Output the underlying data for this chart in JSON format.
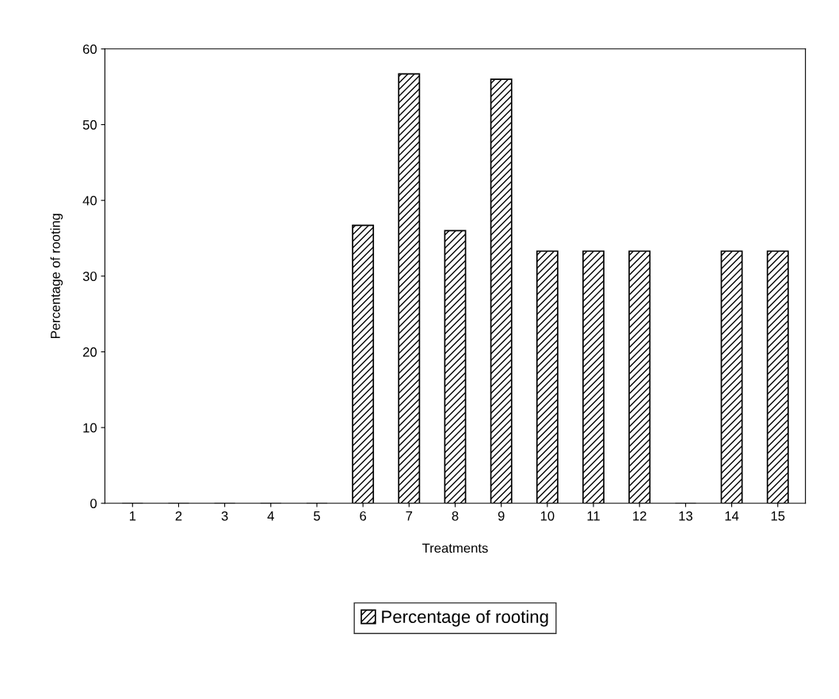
{
  "chart_data": {
    "type": "bar",
    "xlabel": "Treatments",
    "ylabel": "Percentage of rooting",
    "categories": [
      "1",
      "2",
      "3",
      "4",
      "5",
      "6",
      "7",
      "8",
      "9",
      "10",
      "11",
      "12",
      "13",
      "14",
      "15"
    ],
    "series": [
      {
        "name": "Percentage of rooting",
        "color": "#000000",
        "values": [
          0,
          0,
          0,
          0,
          0,
          36.7,
          56.7,
          36.0,
          56.0,
          33.3,
          33.3,
          33.3,
          0,
          33.3,
          33.3
        ]
      }
    ],
    "ylim": [
      0,
      60
    ],
    "yticks": [
      0,
      10,
      20,
      30,
      40,
      50,
      60
    ],
    "grid": false,
    "legend": "bottom"
  }
}
